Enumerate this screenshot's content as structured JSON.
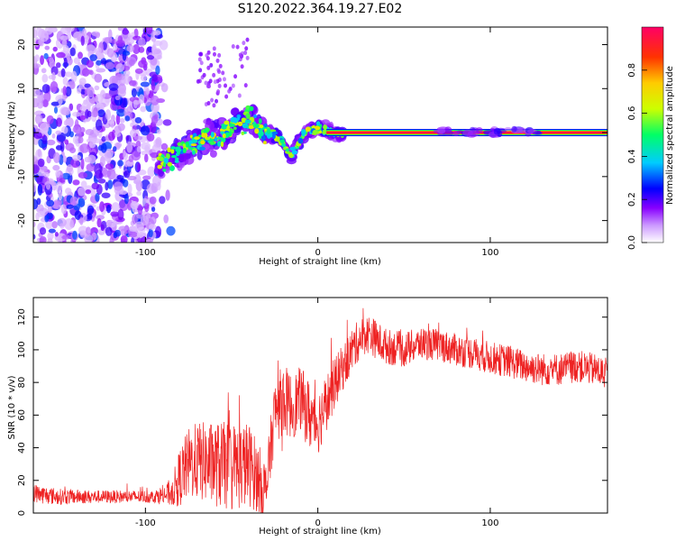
{
  "title": "S120.2022.364.19.27.E02",
  "chart_data": [
    {
      "type": "heatmap",
      "xlabel": "Height of straight line (km)",
      "ylabel": "Frequency (Hz)",
      "xlim": [
        -165,
        168
      ],
      "ylim": [
        -25,
        24
      ],
      "x_ticks": [
        -100,
        0,
        100
      ],
      "x_tick_labels": [
        "-100",
        "0",
        "100"
      ],
      "y_ticks": [
        -20,
        -10,
        0,
        10,
        20
      ],
      "y_tick_labels": [
        "-20",
        "-10",
        "0",
        "10",
        "20"
      ],
      "colorbar": {
        "label": "Normalized spectral amplitude",
        "range": [
          0.0,
          1.0
        ],
        "ticks": [
          0.0,
          0.2,
          0.4,
          0.6,
          0.8
        ],
        "tick_labels": [
          "0.0",
          "0.2",
          "0.4",
          "0.6",
          "0.8"
        ],
        "colors": [
          "#ffffff",
          "#cc99ff",
          "#8800ff",
          "#0000ff",
          "#00ccff",
          "#00ff66",
          "#ccff00",
          "#ffcc00",
          "#ff3300",
          "#ff0066"
        ]
      },
      "regions": [
        {
          "name": "noise",
          "x": [
            -165,
            -92
          ],
          "y": [
            -25,
            24
          ],
          "amplitude": [
            0.05,
            0.3
          ]
        },
        {
          "name": "scattered",
          "x": [
            -92,
            15
          ],
          "center_freq": [
            -7,
            -6,
            -4,
            -2,
            -1,
            0,
            2,
            3,
            1,
            0,
            -1,
            -4,
            -5,
            0,
            1,
            0
          ],
          "center_x": [
            -92,
            -85,
            -78,
            -70,
            -62,
            -55,
            -48,
            -40,
            -34,
            -28,
            -22,
            -18,
            -15,
            -8,
            0,
            10
          ],
          "amplitude": [
            0.3,
            0.7
          ]
        },
        {
          "name": "steady",
          "x": [
            5,
            168
          ],
          "y": [
            0,
            0
          ],
          "amplitude": [
            0.9,
            1.0
          ]
        }
      ]
    },
    {
      "type": "line",
      "xlabel": "Height of straight line (km)",
      "ylabel": "SNR (10 * v/v)",
      "xlim": [
        -165,
        168
      ],
      "ylim": [
        0,
        132
      ],
      "x_ticks": [
        -100,
        0,
        100
      ],
      "x_tick_labels": [
        "-100",
        "0",
        "100"
      ],
      "y_ticks": [
        0,
        20,
        40,
        60,
        80,
        100,
        120
      ],
      "y_tick_labels": [
        "0",
        "20",
        "40",
        "60",
        "80",
        "100",
        "120"
      ],
      "color": "#ee2222",
      "series": [
        {
          "x": [
            -165,
            -150,
            -130,
            -110,
            -95,
            -85,
            -80,
            -75,
            -70,
            -60,
            -50,
            -40,
            -30,
            -25,
            -20,
            -15,
            -10,
            -5,
            0,
            5,
            10,
            15,
            20,
            25,
            30,
            35,
            40,
            50,
            60,
            70,
            80,
            90,
            100,
            110,
            120,
            130,
            140,
            150,
            160,
            168
          ],
          "y": [
            12,
            10,
            10,
            10,
            10,
            12,
            22,
            30,
            32,
            30,
            28,
            30,
            14,
            62,
            70,
            65,
            70,
            60,
            55,
            68,
            80,
            90,
            100,
            108,
            110,
            105,
            102,
            100,
            104,
            103,
            100,
            98,
            95,
            93,
            90,
            88,
            88,
            90,
            88,
            85
          ],
          "noise_amplitude": [
            6,
            5,
            4,
            4,
            4,
            8,
            18,
            22,
            24,
            26,
            28,
            26,
            18,
            20,
            22,
            20,
            20,
            22,
            20,
            18,
            16,
            14,
            14,
            12,
            12,
            12,
            11,
            11,
            10,
            10,
            10,
            10,
            10,
            10,
            10,
            10,
            10,
            10,
            10,
            10
          ]
        }
      ]
    }
  ]
}
